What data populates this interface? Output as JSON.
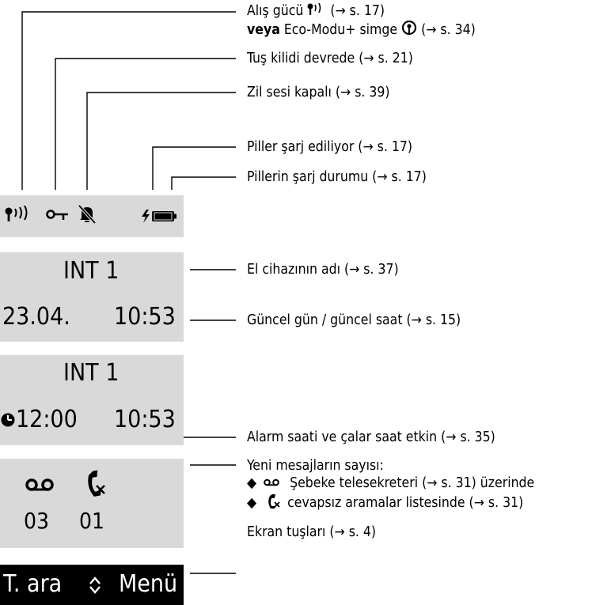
{
  "annotations": {
    "reception_strength": "Alış gücü",
    "reception_strength_ref": "(→ s. 17)",
    "eco_mode_or": "veya",
    "eco_mode": "Eco-Modu+ simge",
    "eco_mode_ref": "(→ s. 34)",
    "keypad_lock": "Tuş kilidi devrede (→ s. 21)",
    "ringer_off": "Zil sesi kapalı (→ s. 39)",
    "batteries_charging": "Piller şarj ediliyor (→ s. 17)",
    "battery_charge_status": "Pillerin şarj durumu (→ s. 17)",
    "handset_name": "El cihazının adı (→ s. 37)",
    "date_time": "Güncel gün / güncel saat (→ s. 15)",
    "alarm": "Alarm saati ve çalar saat etkin (→ s. 35)",
    "new_messages_count": "Yeni mesajların sayısı:",
    "network_mailbox": "Şebeke telesekreteri (→ s. 31) üzerinde",
    "missed_calls": "cevapsız aramalar listesinde (→ s. 31)",
    "display_keys": "Ekran tuşları (→ s. 4)"
  },
  "display": {
    "handset_name_1": "INT 1",
    "date": "23.04.",
    "time_1": "10:53",
    "handset_name_2": "INT 1",
    "alarm_time": "12:00",
    "time_2": "10:53",
    "mailbox_count": "03",
    "missed_count": "01",
    "softkey_left": "T. ara",
    "softkey_right": "Menü"
  },
  "icons": [
    "signal-icon",
    "key-lock-icon",
    "ringer-off-icon",
    "charging-battery-icon",
    "alarm-clock-icon",
    "voicemail-icon",
    "missed-call-icon",
    "up-down-arrow-icon",
    "eco-mode-icon"
  ]
}
